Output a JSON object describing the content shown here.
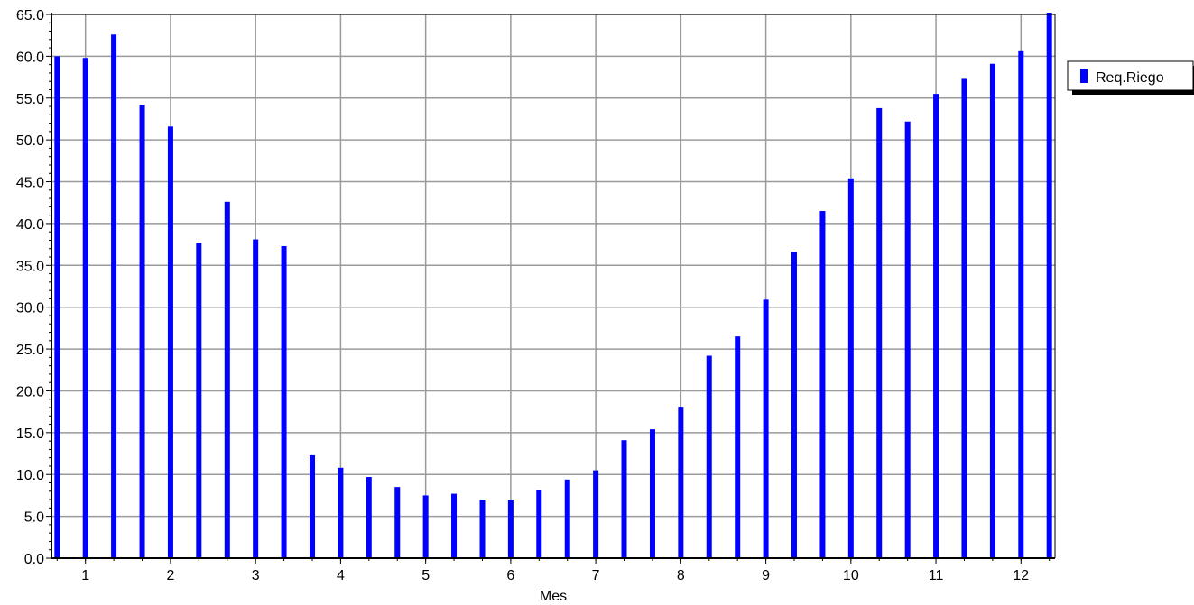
{
  "chart_data": {
    "type": "bar",
    "xlabel": "Mes",
    "ylabel": "",
    "ylim": [
      0,
      65
    ],
    "yticks": [
      "0.0",
      "5.0",
      "10.0",
      "15.0",
      "20.0",
      "25.0",
      "30.0",
      "35.0",
      "40.0",
      "45.0",
      "50.0",
      "55.0",
      "60.0",
      "65.0"
    ],
    "xlim": [
      0.6,
      12.4
    ],
    "xticks": [
      "1",
      "2",
      "3",
      "4",
      "5",
      "6",
      "7",
      "8",
      "9",
      "10",
      "11",
      "12"
    ],
    "grid": true,
    "legend_position": "right",
    "series": [
      {
        "name": "Req.Riego",
        "color": "#0000ff",
        "x": [
          0.667,
          1.0,
          1.333,
          1.667,
          2.0,
          2.333,
          2.667,
          3.0,
          3.333,
          3.667,
          4.0,
          4.333,
          4.667,
          5.0,
          5.333,
          5.667,
          6.0,
          6.333,
          6.667,
          7.0,
          7.333,
          7.667,
          8.0,
          8.333,
          8.667,
          9.0,
          9.333,
          9.667,
          10.0,
          10.333,
          10.667,
          11.0,
          11.333,
          11.667,
          12.0,
          12.333
        ],
        "values": [
          60.0,
          59.8,
          62.6,
          54.2,
          51.6,
          37.7,
          42.6,
          38.1,
          37.3,
          12.3,
          10.8,
          9.7,
          8.5,
          7.5,
          7.7,
          7.0,
          7.0,
          8.1,
          9.4,
          10.5,
          14.1,
          15.4,
          18.1,
          24.2,
          26.5,
          30.9,
          36.6,
          41.5,
          45.4,
          53.8,
          52.2,
          55.5,
          57.3,
          59.1,
          60.6,
          65.8
        ]
      }
    ]
  }
}
